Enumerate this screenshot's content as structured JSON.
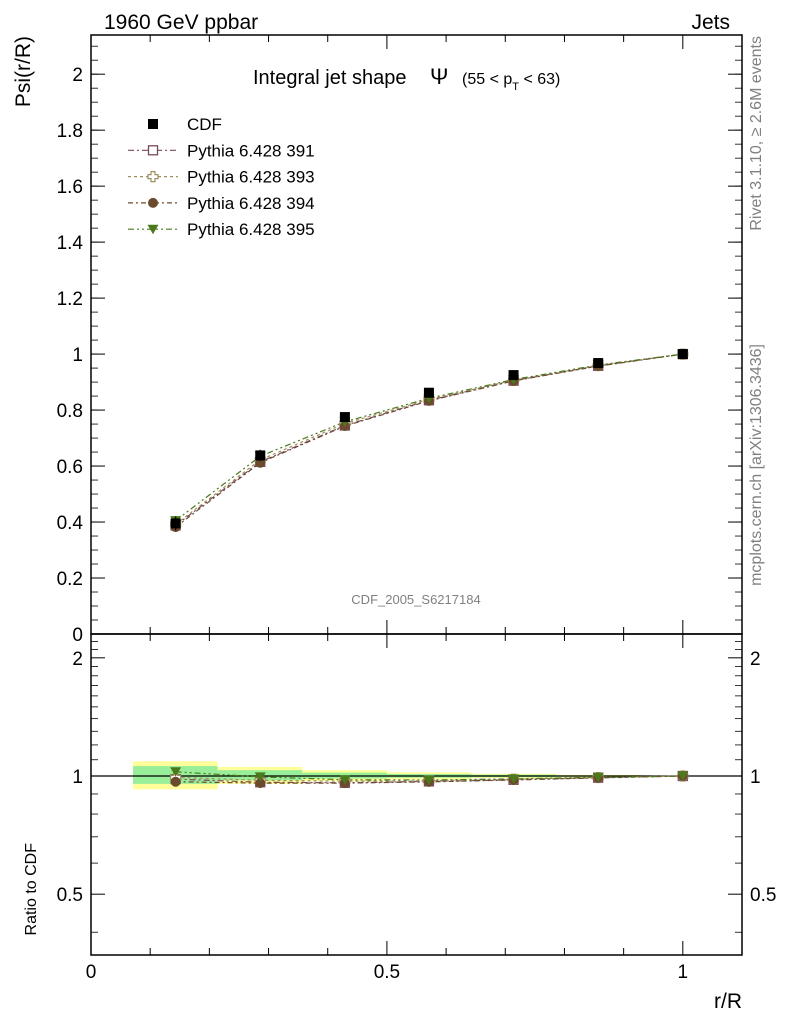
{
  "header": {
    "left": "1960 GeV ppbar",
    "right": "Jets"
  },
  "side": {
    "rivet": "Rivet 3.1.10, ≥ 2.6M events",
    "mcplots": "mcplots.cern.ch [arXiv:1306.3436]"
  },
  "chart_data": [
    {
      "type": "line",
      "title_main": "Integral jet shape",
      "title_symbol": "Ψ",
      "title_range_pre": "(55 < p",
      "title_range_sub": "T",
      "title_range_post": " < 63)",
      "ylabel": "Psi(r/R)",
      "watermark": "CDF_2005_S6217184",
      "xlim": [
        0,
        1.1
      ],
      "ylim": [
        0,
        2.14
      ],
      "y_ticks": [
        "0",
        "0.2",
        "0.4",
        "0.6",
        "0.8",
        "1",
        "1.2",
        "1.4",
        "1.6",
        "1.8",
        "2"
      ],
      "x": [
        0.143,
        0.286,
        0.429,
        0.571,
        0.714,
        0.857,
        1.0
      ],
      "series": [
        {
          "name": "CDF",
          "color": "#000000",
          "marker": "square",
          "values": [
            0.395,
            0.638,
            0.775,
            0.862,
            0.925,
            0.968,
            1.0
          ],
          "err": [
            0.025,
            0.02,
            0.015,
            0.012,
            0.008,
            0.005,
            0.0
          ]
        },
        {
          "name": "Pythia 6.428 391",
          "color": "#7a4a5a",
          "marker": "open-square",
          "dash": "6,3,2,3",
          "values": [
            0.388,
            0.615,
            0.745,
            0.835,
            0.905,
            0.958,
            1.0
          ]
        },
        {
          "name": "Pythia 6.428 393",
          "color": "#a09060",
          "marker": "open-cross",
          "dash": "3,3",
          "values": [
            0.392,
            0.622,
            0.752,
            0.838,
            0.907,
            0.959,
            1.0
          ]
        },
        {
          "name": "Pythia 6.428 394",
          "color": "#6b4a2e",
          "marker": "circle",
          "dash": "5,3,2,3",
          "values": [
            0.382,
            0.612,
            0.743,
            0.833,
            0.904,
            0.957,
            1.0
          ]
        },
        {
          "name": "Pythia 6.428 395",
          "color": "#4a7a1a",
          "marker": "triangle-down",
          "dash": "6,3,2,3,2,3",
          "values": [
            0.405,
            0.635,
            0.758,
            0.842,
            0.909,
            0.961,
            1.0
          ]
        }
      ]
    },
    {
      "type": "line",
      "ylabel": "Ratio to CDF",
      "xlabel": "r/R",
      "x_ticks": [
        "0",
        "0.5",
        "1"
      ],
      "y_ticks": [
        "0.5",
        "1",
        "2"
      ],
      "y_scale": "log",
      "ylim": [
        0.35,
        2.3
      ],
      "xlim": [
        0,
        1.1
      ],
      "x": [
        0.143,
        0.286,
        0.429,
        0.571,
        0.714,
        0.857,
        1.0
      ],
      "bands": [
        {
          "x0": 0.071,
          "x1": 0.214,
          "inner": [
            0.955,
            1.06
          ],
          "outer": [
            0.925,
            1.09
          ]
        },
        {
          "x0": 0.214,
          "x1": 0.357,
          "inner": [
            0.975,
            1.035
          ],
          "outer": [
            0.955,
            1.055
          ]
        },
        {
          "x0": 0.357,
          "x1": 0.5,
          "inner": [
            0.985,
            1.02
          ],
          "outer": [
            0.97,
            1.035
          ]
        },
        {
          "x0": 0.5,
          "x1": 0.643,
          "inner": [
            0.99,
            1.012
          ],
          "outer": [
            0.98,
            1.022
          ]
        },
        {
          "x0": 0.643,
          "x1": 0.786,
          "inner": [
            0.993,
            1.008
          ],
          "outer": [
            0.988,
            1.013
          ]
        },
        {
          "x0": 0.786,
          "x1": 0.929,
          "inner": [
            0.996,
            1.004
          ],
          "outer": [
            0.993,
            1.007
          ]
        }
      ],
      "series": [
        {
          "name": "Pythia 6.428 391",
          "color": "#7a4a5a",
          "marker": "open-square",
          "values": [
            0.982,
            0.964,
            0.961,
            0.969,
            0.978,
            0.99,
            1.0
          ]
        },
        {
          "name": "Pythia 6.428 393",
          "color": "#a09060",
          "marker": "open-cross",
          "values": [
            0.992,
            0.975,
            0.97,
            0.972,
            0.981,
            0.991,
            1.0
          ]
        },
        {
          "name": "Pythia 6.428 394",
          "color": "#6b4a2e",
          "marker": "circle",
          "values": [
            0.967,
            0.959,
            0.959,
            0.966,
            0.977,
            0.989,
            1.0
          ]
        },
        {
          "name": "Pythia 6.428 395",
          "color": "#4a7a1a",
          "marker": "triangle-down",
          "values": [
            1.025,
            0.995,
            0.978,
            0.977,
            0.983,
            0.993,
            1.0
          ]
        }
      ]
    }
  ]
}
